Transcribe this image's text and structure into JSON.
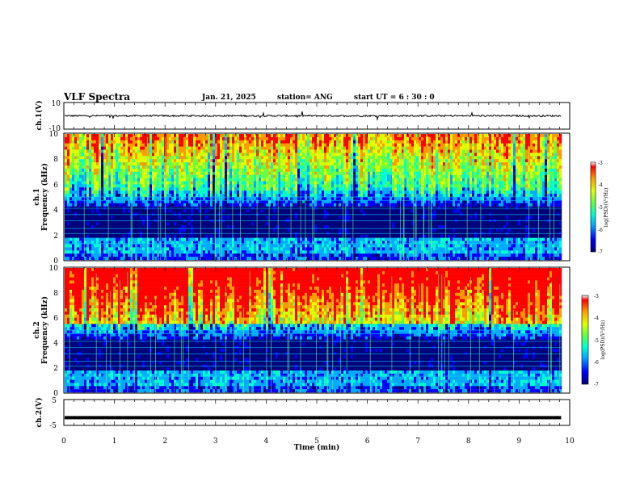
{
  "header": {
    "title": "VLF Spectra",
    "date": "Jan. 21, 2025",
    "station": "station= ANG",
    "start_ut": "start UT =  6 : 30 : 0"
  },
  "chart_data": [
    {
      "type": "line",
      "ylabel": "ch.1(V)",
      "ylim": [
        -10,
        10
      ],
      "ytick_labels": [
        "10",
        "-10"
      ],
      "x_range": [
        0,
        10
      ],
      "baseline_value": 0,
      "trace": "noisy waveform near 0 V with occasional spikes"
    },
    {
      "type": "heatmap",
      "ylabel_channel": "ch.1",
      "ylabel": "Frequency (kHz)",
      "ylim": [
        0,
        10
      ],
      "ytick_labels": [
        "0",
        "2",
        "4",
        "6",
        "8",
        "10"
      ],
      "colorbar": {
        "label": "log(PSD)(V²/Hz)",
        "range": [
          -7,
          -3
        ],
        "tick_labels": [
          "-3",
          "-4",
          "-5",
          "-6",
          "-7"
        ]
      },
      "colormap": [
        "#00007a",
        "#0000ff",
        "#00aaff",
        "#00ffcc",
        "#66ff44",
        "#ddff00",
        "#ff9900",
        "#ff0000"
      ]
    },
    {
      "type": "heatmap",
      "ylabel_channel": "ch.2",
      "ylabel": "Frequency (kHz)",
      "ylim": [
        0,
        10
      ],
      "ytick_labels": [
        "0",
        "2",
        "4",
        "6",
        "8",
        "10"
      ],
      "colorbar": {
        "label": "log(PSD)(V²/Hz)",
        "range": [
          -7,
          -3
        ],
        "tick_labels": [
          "-3",
          "-4",
          "-5",
          "-6",
          "-7"
        ]
      },
      "colormap": [
        "#00007a",
        "#0000ff",
        "#00aaff",
        "#00ffcc",
        "#66ff44",
        "#ddff00",
        "#ff9900",
        "#ff0000"
      ]
    },
    {
      "type": "line",
      "ylabel": "ch.2(V)",
      "ylim": [
        -5,
        5
      ],
      "ytick_labels": [
        "5",
        "-5"
      ],
      "xlabel": "Time (min)",
      "xlim": [
        0,
        10
      ],
      "xtick_labels": [
        "0",
        "1",
        "2",
        "3",
        "4",
        "5",
        "6",
        "7",
        "8",
        "9",
        "10"
      ],
      "baseline_value": -2,
      "trace": "thick flat line near -2 V"
    }
  ]
}
